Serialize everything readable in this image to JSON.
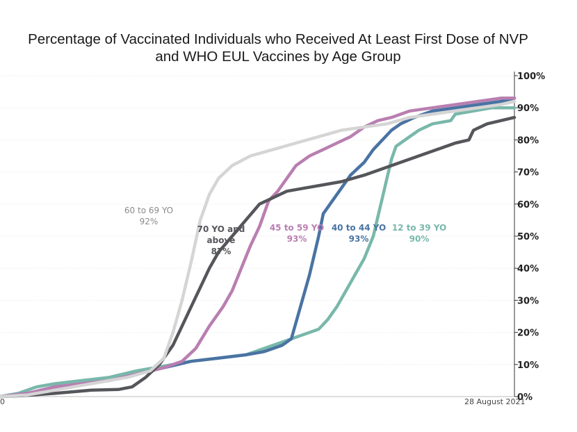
{
  "chart_data": {
    "type": "line",
    "title_line1": "Percentage of Vaccinated Individuals who Received At Least First Dose of NVP",
    "title_line2": "and WHO EUL Vaccines by Age Group",
    "y_ticks": [
      "0%",
      "10%",
      "20%",
      "30%",
      "40%",
      "50%",
      "60%",
      "70%",
      "80%",
      "90%",
      "100%"
    ],
    "ylim": [
      0,
      100
    ],
    "x_start_label": "0",
    "x_end_label": "28 August 2021",
    "grid": true,
    "series": [
      {
        "key": "s70",
        "name": "70 YO and above",
        "final": "87%",
        "color": "#55565a",
        "label_lines": [
          "70 YO and",
          "above",
          "87%"
        ],
        "points": [
          [
            0,
            0
          ],
          [
            5,
            0.3
          ],
          [
            12,
            1
          ],
          [
            20,
            2
          ],
          [
            26,
            2.2
          ],
          [
            29,
            3
          ],
          [
            32,
            6
          ],
          [
            35,
            10
          ],
          [
            38,
            16
          ],
          [
            40,
            22
          ],
          [
            42,
            28
          ],
          [
            44,
            34
          ],
          [
            46,
            40
          ],
          [
            48,
            45
          ],
          [
            51,
            50
          ],
          [
            54,
            55
          ],
          [
            57,
            60
          ],
          [
            60,
            62
          ],
          [
            63,
            64
          ],
          [
            67,
            65
          ],
          [
            71,
            66
          ],
          [
            75,
            67
          ],
          [
            80,
            69
          ],
          [
            84,
            71
          ],
          [
            88,
            73
          ],
          [
            92,
            75
          ],
          [
            96,
            77
          ],
          [
            100,
            79
          ],
          [
            103,
            80
          ],
          [
            104,
            83
          ],
          [
            107,
            85
          ],
          [
            110,
            86
          ],
          [
            113,
            87
          ]
        ]
      },
      {
        "key": "s60",
        "name": "60 to 69 YO",
        "final": "92%",
        "color": "#d5d5d5",
        "label_lines": [
          "60 to 69 YO",
          "92%"
        ],
        "points": [
          [
            0,
            0
          ],
          [
            6,
            0.5
          ],
          [
            12,
            2
          ],
          [
            18,
            3.5
          ],
          [
            24,
            5
          ],
          [
            28,
            6
          ],
          [
            33,
            8
          ],
          [
            36,
            12
          ],
          [
            38,
            20
          ],
          [
            40,
            30
          ],
          [
            42,
            42
          ],
          [
            44,
            55
          ],
          [
            46,
            63
          ],
          [
            48,
            68
          ],
          [
            51,
            72
          ],
          [
            55,
            75
          ],
          [
            60,
            77
          ],
          [
            65,
            79
          ],
          [
            70,
            81
          ],
          [
            75,
            83
          ],
          [
            80,
            84
          ],
          [
            85,
            85
          ],
          [
            90,
            87
          ],
          [
            95,
            88
          ],
          [
            100,
            89
          ],
          [
            105,
            90
          ],
          [
            110,
            91
          ],
          [
            113,
            92
          ]
        ]
      },
      {
        "key": "s45",
        "name": "45 to 59 YO",
        "final": "93%",
        "color": "#b97fb1",
        "label_lines": [
          "45 to 59 YO",
          "93%"
        ],
        "points": [
          [
            0,
            0
          ],
          [
            6,
            1
          ],
          [
            12,
            3
          ],
          [
            18,
            4
          ],
          [
            24,
            5
          ],
          [
            30,
            7
          ],
          [
            36,
            9
          ],
          [
            40,
            11
          ],
          [
            43,
            15
          ],
          [
            46,
            22
          ],
          [
            49,
            28
          ],
          [
            51,
            33
          ],
          [
            53,
            40
          ],
          [
            55,
            47
          ],
          [
            57,
            53
          ],
          [
            59,
            61
          ],
          [
            61,
            64
          ],
          [
            63,
            68
          ],
          [
            65,
            72
          ],
          [
            68,
            75
          ],
          [
            71,
            77
          ],
          [
            74,
            79
          ],
          [
            77,
            81
          ],
          [
            80,
            84
          ],
          [
            83,
            86
          ],
          [
            86,
            87
          ],
          [
            90,
            89
          ],
          [
            95,
            90
          ],
          [
            100,
            91
          ],
          [
            105,
            92
          ],
          [
            110,
            93
          ],
          [
            113,
            93
          ]
        ]
      },
      {
        "key": "s40",
        "name": "40 to 44 YO",
        "final": "93%",
        "color": "#4a73a3",
        "label_lines": [
          "40 to 44 YO",
          "93%"
        ],
        "points": [
          [
            0,
            0
          ],
          [
            6,
            1
          ],
          [
            12,
            3
          ],
          [
            18,
            4
          ],
          [
            24,
            5
          ],
          [
            30,
            7
          ],
          [
            36,
            9
          ],
          [
            42,
            11
          ],
          [
            48,
            12
          ],
          [
            54,
            13
          ],
          [
            58,
            14
          ],
          [
            62,
            16
          ],
          [
            64,
            18
          ],
          [
            66,
            28
          ],
          [
            68,
            38
          ],
          [
            70,
            50
          ],
          [
            71,
            57
          ],
          [
            73,
            61
          ],
          [
            75,
            65
          ],
          [
            77,
            69
          ],
          [
            80,
            73
          ],
          [
            82,
            77
          ],
          [
            84,
            80
          ],
          [
            86,
            83
          ],
          [
            88,
            85
          ],
          [
            91,
            87
          ],
          [
            95,
            89
          ],
          [
            100,
            90
          ],
          [
            105,
            91
          ],
          [
            110,
            92
          ],
          [
            113,
            93
          ]
        ]
      },
      {
        "key": "s12",
        "name": "12 to 39 YO",
        "final": "90%",
        "color": "#79b8ab",
        "label_lines": [
          "12 to 39 YO",
          "90%"
        ],
        "points": [
          [
            0,
            0
          ],
          [
            4,
            1
          ],
          [
            8,
            3
          ],
          [
            12,
            4
          ],
          [
            18,
            5
          ],
          [
            24,
            6
          ],
          [
            30,
            8
          ],
          [
            36,
            9.5
          ],
          [
            42,
            11
          ],
          [
            48,
            12
          ],
          [
            54,
            13
          ],
          [
            58,
            15
          ],
          [
            62,
            17
          ],
          [
            66,
            19
          ],
          [
            70,
            21
          ],
          [
            72,
            24
          ],
          [
            74,
            28
          ],
          [
            76,
            33
          ],
          [
            78,
            38
          ],
          [
            80,
            43
          ],
          [
            82,
            50
          ],
          [
            83,
            56
          ],
          [
            84,
            62
          ],
          [
            85,
            68
          ],
          [
            86,
            74
          ],
          [
            87,
            78
          ],
          [
            89,
            80
          ],
          [
            92,
            83
          ],
          [
            95,
            85
          ],
          [
            99,
            86
          ],
          [
            100,
            88
          ],
          [
            104,
            89
          ],
          [
            108,
            90
          ],
          [
            113,
            90
          ]
        ]
      }
    ]
  }
}
